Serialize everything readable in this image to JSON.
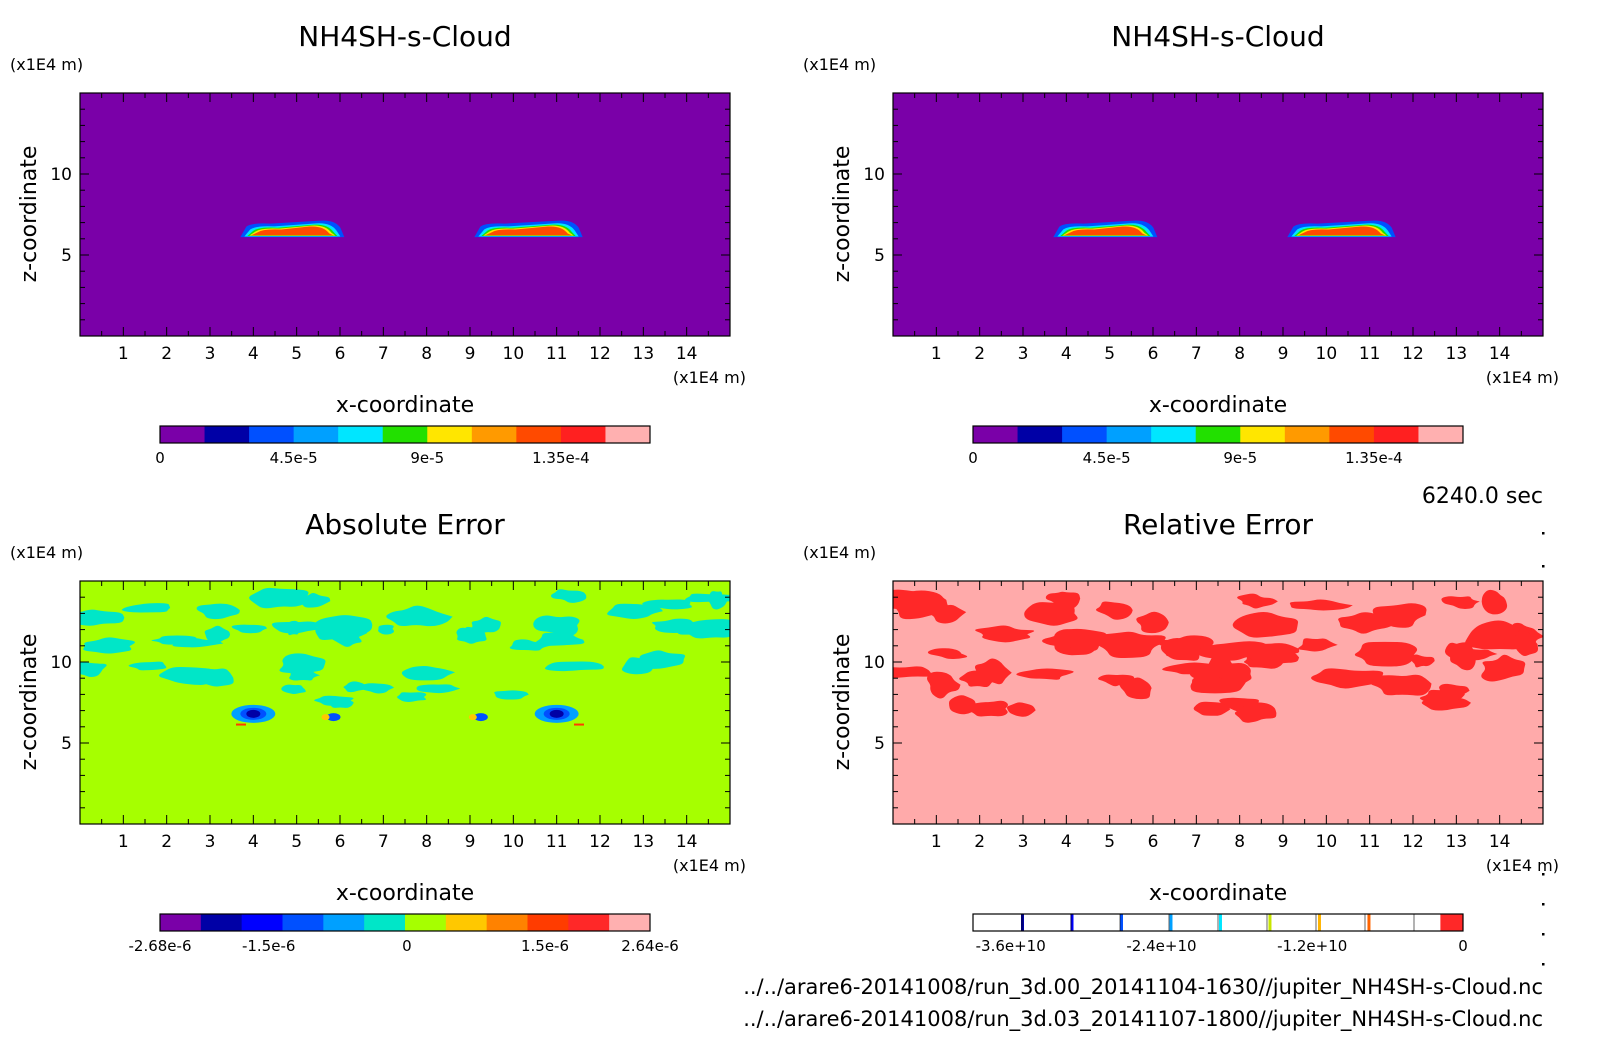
{
  "timestamp": "6240.0 sec",
  "files": [
    "../../arare6-20141008/run_3d.00_20141104-1630//jupiter_NH4SH-s-Cloud.nc",
    "../../arare6-20141008/run_3d.03_20141107-1800//jupiter_NH4SH-s-Cloud.nc"
  ],
  "chart_data": [
    {
      "type": "heatmap",
      "title": "NH4SH-s-Cloud",
      "xlabel": "x-coordinate",
      "ylabel": "z-coordinate",
      "x_unit": "(x1E4 m)",
      "y_unit": "(x1E4 m)",
      "xlim": [
        0,
        15
      ],
      "ylim": [
        0,
        15
      ],
      "x_ticks": [
        "1",
        "2",
        "3",
        "4",
        "5",
        "6",
        "7",
        "8",
        "9",
        "10",
        "11",
        "12",
        "13",
        "14"
      ],
      "y_ticks": [
        "5",
        "10"
      ],
      "background_color": "#7a00a8",
      "colorbar": {
        "colors": [
          "#7a00a8",
          "#0000a6",
          "#0050ff",
          "#00a0ff",
          "#00e6ff",
          "#22e000",
          "#ffe600",
          "#ff9a00",
          "#ff4a00",
          "#ff2020",
          "#ffb0b0"
        ],
        "tick_labels": [
          "0",
          "4.5e-5",
          "9e-5",
          "1.35e-4"
        ],
        "tick_values": [
          0,
          4.5e-05,
          9e-05,
          0.000135
        ],
        "range": [
          0,
          0.000165
        ]
      },
      "features": [
        {
          "x_range": [
            3.7,
            6.1
          ],
          "z_range": [
            6.1,
            7.0
          ],
          "peak": 0.00015
        },
        {
          "x_range": [
            9.1,
            11.6
          ],
          "z_range": [
            6.1,
            7.0
          ],
          "peak": 0.00015
        }
      ]
    },
    {
      "type": "heatmap",
      "title": "NH4SH-s-Cloud",
      "xlabel": "x-coordinate",
      "ylabel": "z-coordinate",
      "x_unit": "(x1E4 m)",
      "y_unit": "(x1E4 m)",
      "xlim": [
        0,
        15
      ],
      "ylim": [
        0,
        15
      ],
      "x_ticks": [
        "1",
        "2",
        "3",
        "4",
        "5",
        "6",
        "7",
        "8",
        "9",
        "10",
        "11",
        "12",
        "13",
        "14"
      ],
      "y_ticks": [
        "5",
        "10"
      ],
      "background_color": "#7a00a8",
      "colorbar": {
        "colors": [
          "#7a00a8",
          "#0000a6",
          "#0050ff",
          "#00a0ff",
          "#00e6ff",
          "#22e000",
          "#ffe600",
          "#ff9a00",
          "#ff4a00",
          "#ff2020",
          "#ffb0b0"
        ],
        "tick_labels": [
          "0",
          "4.5e-5",
          "9e-5",
          "1.35e-4"
        ],
        "tick_values": [
          0,
          4.5e-05,
          9e-05,
          0.000135
        ],
        "range": [
          0,
          0.000165
        ]
      },
      "features": [
        {
          "x_range": [
            3.7,
            6.1
          ],
          "z_range": [
            6.1,
            7.0
          ],
          "peak": 0.00015
        },
        {
          "x_range": [
            9.1,
            11.6
          ],
          "z_range": [
            6.1,
            7.0
          ],
          "peak": 0.00015
        }
      ]
    },
    {
      "type": "heatmap",
      "title": "Absolute Error",
      "xlabel": "x-coordinate",
      "ylabel": "z-coordinate",
      "x_unit": "(x1E4 m)",
      "y_unit": "(x1E4 m)",
      "xlim": [
        0,
        15
      ],
      "ylim": [
        0,
        15
      ],
      "x_ticks": [
        "1",
        "2",
        "3",
        "4",
        "5",
        "6",
        "7",
        "8",
        "9",
        "10",
        "11",
        "12",
        "13",
        "14"
      ],
      "y_ticks": [
        "5",
        "10"
      ],
      "background_color": "#a6ff00",
      "colorbar": {
        "colors": [
          "#7a00a8",
          "#0000a6",
          "#0000ff",
          "#0050ff",
          "#00a0ff",
          "#00e6c8",
          "#a6ff00",
          "#ffc800",
          "#ff8200",
          "#ff3c00",
          "#ff2828",
          "#ffb0b0"
        ],
        "tick_labels": [
          "-2.68e-6",
          "-1.5e-6",
          "0",
          "1.5e-6",
          "2.64e-6"
        ],
        "tick_values": [
          -2.68e-06,
          -1.5e-06,
          0,
          1.5e-06,
          2.64e-06
        ],
        "range": [
          -2.68e-06,
          2.64e-06
        ]
      }
    },
    {
      "type": "heatmap",
      "title": "Relative Error",
      "xlabel": "x-coordinate",
      "ylabel": "z-coordinate",
      "x_unit": "(x1E4 m)",
      "y_unit": "(x1E4 m)",
      "xlim": [
        0,
        15
      ],
      "ylim": [
        0,
        15
      ],
      "x_ticks": [
        "1",
        "2",
        "3",
        "4",
        "5",
        "6",
        "7",
        "8",
        "9",
        "10",
        "11",
        "12",
        "13",
        "14"
      ],
      "y_ticks": [
        "5",
        "10"
      ],
      "background_color": "#ffaaaa",
      "colorbar": {
        "colors": [
          "#ffffff",
          "#ffffff",
          "#ffffff",
          "#ffffff",
          "#ffffff",
          "#ffffff",
          "#ffffff",
          "#ffffff",
          "#ffffff",
          "#ff2828"
        ],
        "line_colors": [
          "#0000a6",
          "#0000ff",
          "#0050ff",
          "#00a0ff",
          "#00e6ff",
          "#c8e600",
          "#ffb400",
          "#ff6400"
        ],
        "tick_labels": [
          "-3.6e+10",
          "-2.4e+10",
          "-1.2e+10",
          "0"
        ],
        "tick_values": [
          -36000000000.0,
          -24000000000.0,
          -12000000000.0,
          0
        ],
        "range": [
          -39000000000.0,
          0
        ]
      }
    }
  ]
}
